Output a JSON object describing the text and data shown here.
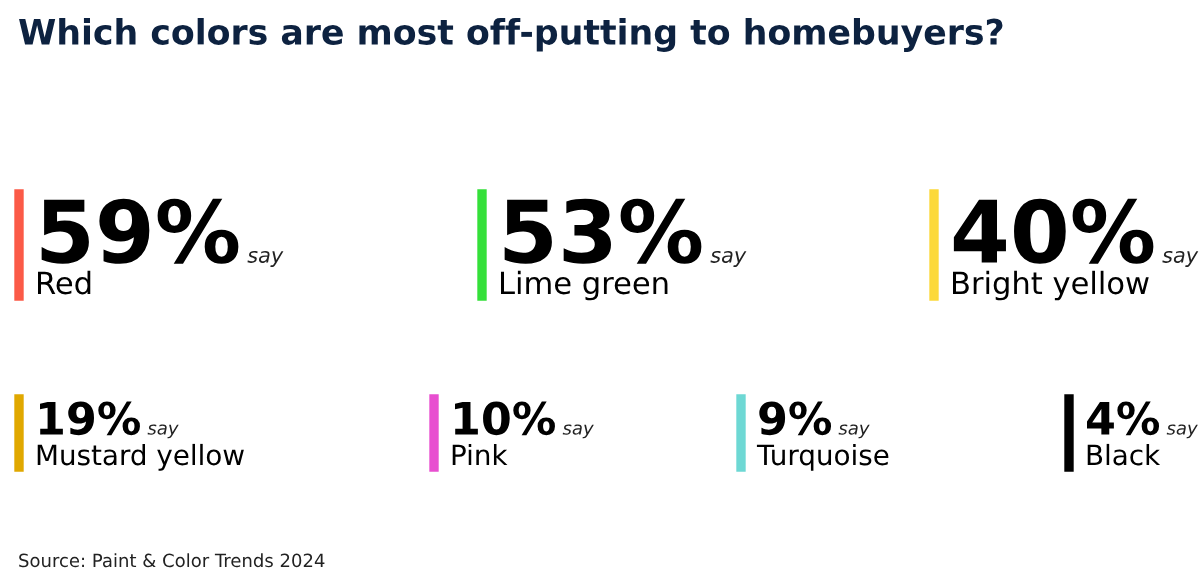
{
  "chart_data": {
    "type": "other",
    "title": "Which colors are most off-putting to homebuyers?",
    "categories": [
      "Red",
      "Lime green",
      "Bright yellow",
      "Mustard yellow",
      "Pink",
      "Turquoise",
      "Black"
    ],
    "values": [
      59,
      53,
      40,
      19,
      10,
      9,
      4
    ],
    "value_labels": [
      "59%",
      "53%",
      "40%",
      "19%",
      "10%",
      "9%",
      "4%"
    ],
    "colors": [
      "#fb5a47",
      "#35e03a",
      "#fcd93a",
      "#e0a800",
      "#e84fd0",
      "#6ed8d4",
      "#000000"
    ],
    "annotations": [
      {
        "text": "say",
        "x": "Red"
      },
      {
        "text": "say",
        "x": "Lime green"
      },
      {
        "text": "say",
        "x": "Bright yellow"
      },
      {
        "text": "say",
        "x": "Mustard yellow"
      },
      {
        "text": "say",
        "x": "Pink"
      },
      {
        "text": "say",
        "x": "Turquoise"
      },
      {
        "text": "say",
        "x": "Black"
      },
      "Source: Paint & Color Trends 2024"
    ]
  }
}
